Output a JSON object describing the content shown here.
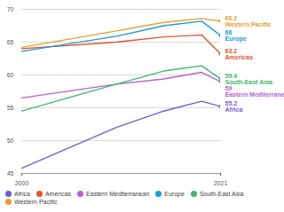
{
  "chart_data": {
    "type": "line",
    "x": [
      2000,
      2010,
      2015,
      2019,
      2021
    ],
    "xlim": [
      2000,
      2021
    ],
    "xticks": [
      2000,
      2021
    ],
    "ylim": [
      45,
      70
    ],
    "yticks": [
      45,
      50,
      55,
      60,
      65,
      70
    ],
    "grid": true,
    "legend": "bottom",
    "series": [
      {
        "name": "Africa",
        "color": "#6f5fd0",
        "values": [
          45.8,
          52.0,
          54.5,
          56.0,
          55.2
        ],
        "value_labels": [
          null,
          null,
          null,
          null,
          "55.2"
        ]
      },
      {
        "name": "Americas",
        "color": "#e2552f",
        "values": [
          64.0,
          65.0,
          65.8,
          66.1,
          63.2
        ],
        "value_labels": [
          null,
          null,
          null,
          null,
          "63.2"
        ]
      },
      {
        "name": "Eastern Mediterranean",
        "color": "#b65fcf",
        "values": [
          56.5,
          58.6,
          59.4,
          60.4,
          59.0
        ],
        "value_labels": [
          null,
          null,
          null,
          null,
          "59"
        ]
      },
      {
        "name": "Europe",
        "color": "#1b9ad6",
        "values": [
          63.6,
          65.9,
          67.5,
          68.2,
          66.0
        ],
        "value_labels": [
          null,
          null,
          null,
          null,
          "66"
        ]
      },
      {
        "name": "South-East Asia",
        "color": "#3fb86b",
        "values": [
          54.5,
          58.6,
          60.6,
          61.4,
          59.4
        ],
        "value_labels": [
          null,
          null,
          null,
          null,
          "59.4"
        ]
      },
      {
        "name": "Western Pacific",
        "color": "#e69f2e",
        "values": [
          64.2,
          66.7,
          68.0,
          68.6,
          68.2
        ],
        "value_labels": [
          null,
          null,
          null,
          null,
          "68.2"
        ]
      }
    ]
  }
}
